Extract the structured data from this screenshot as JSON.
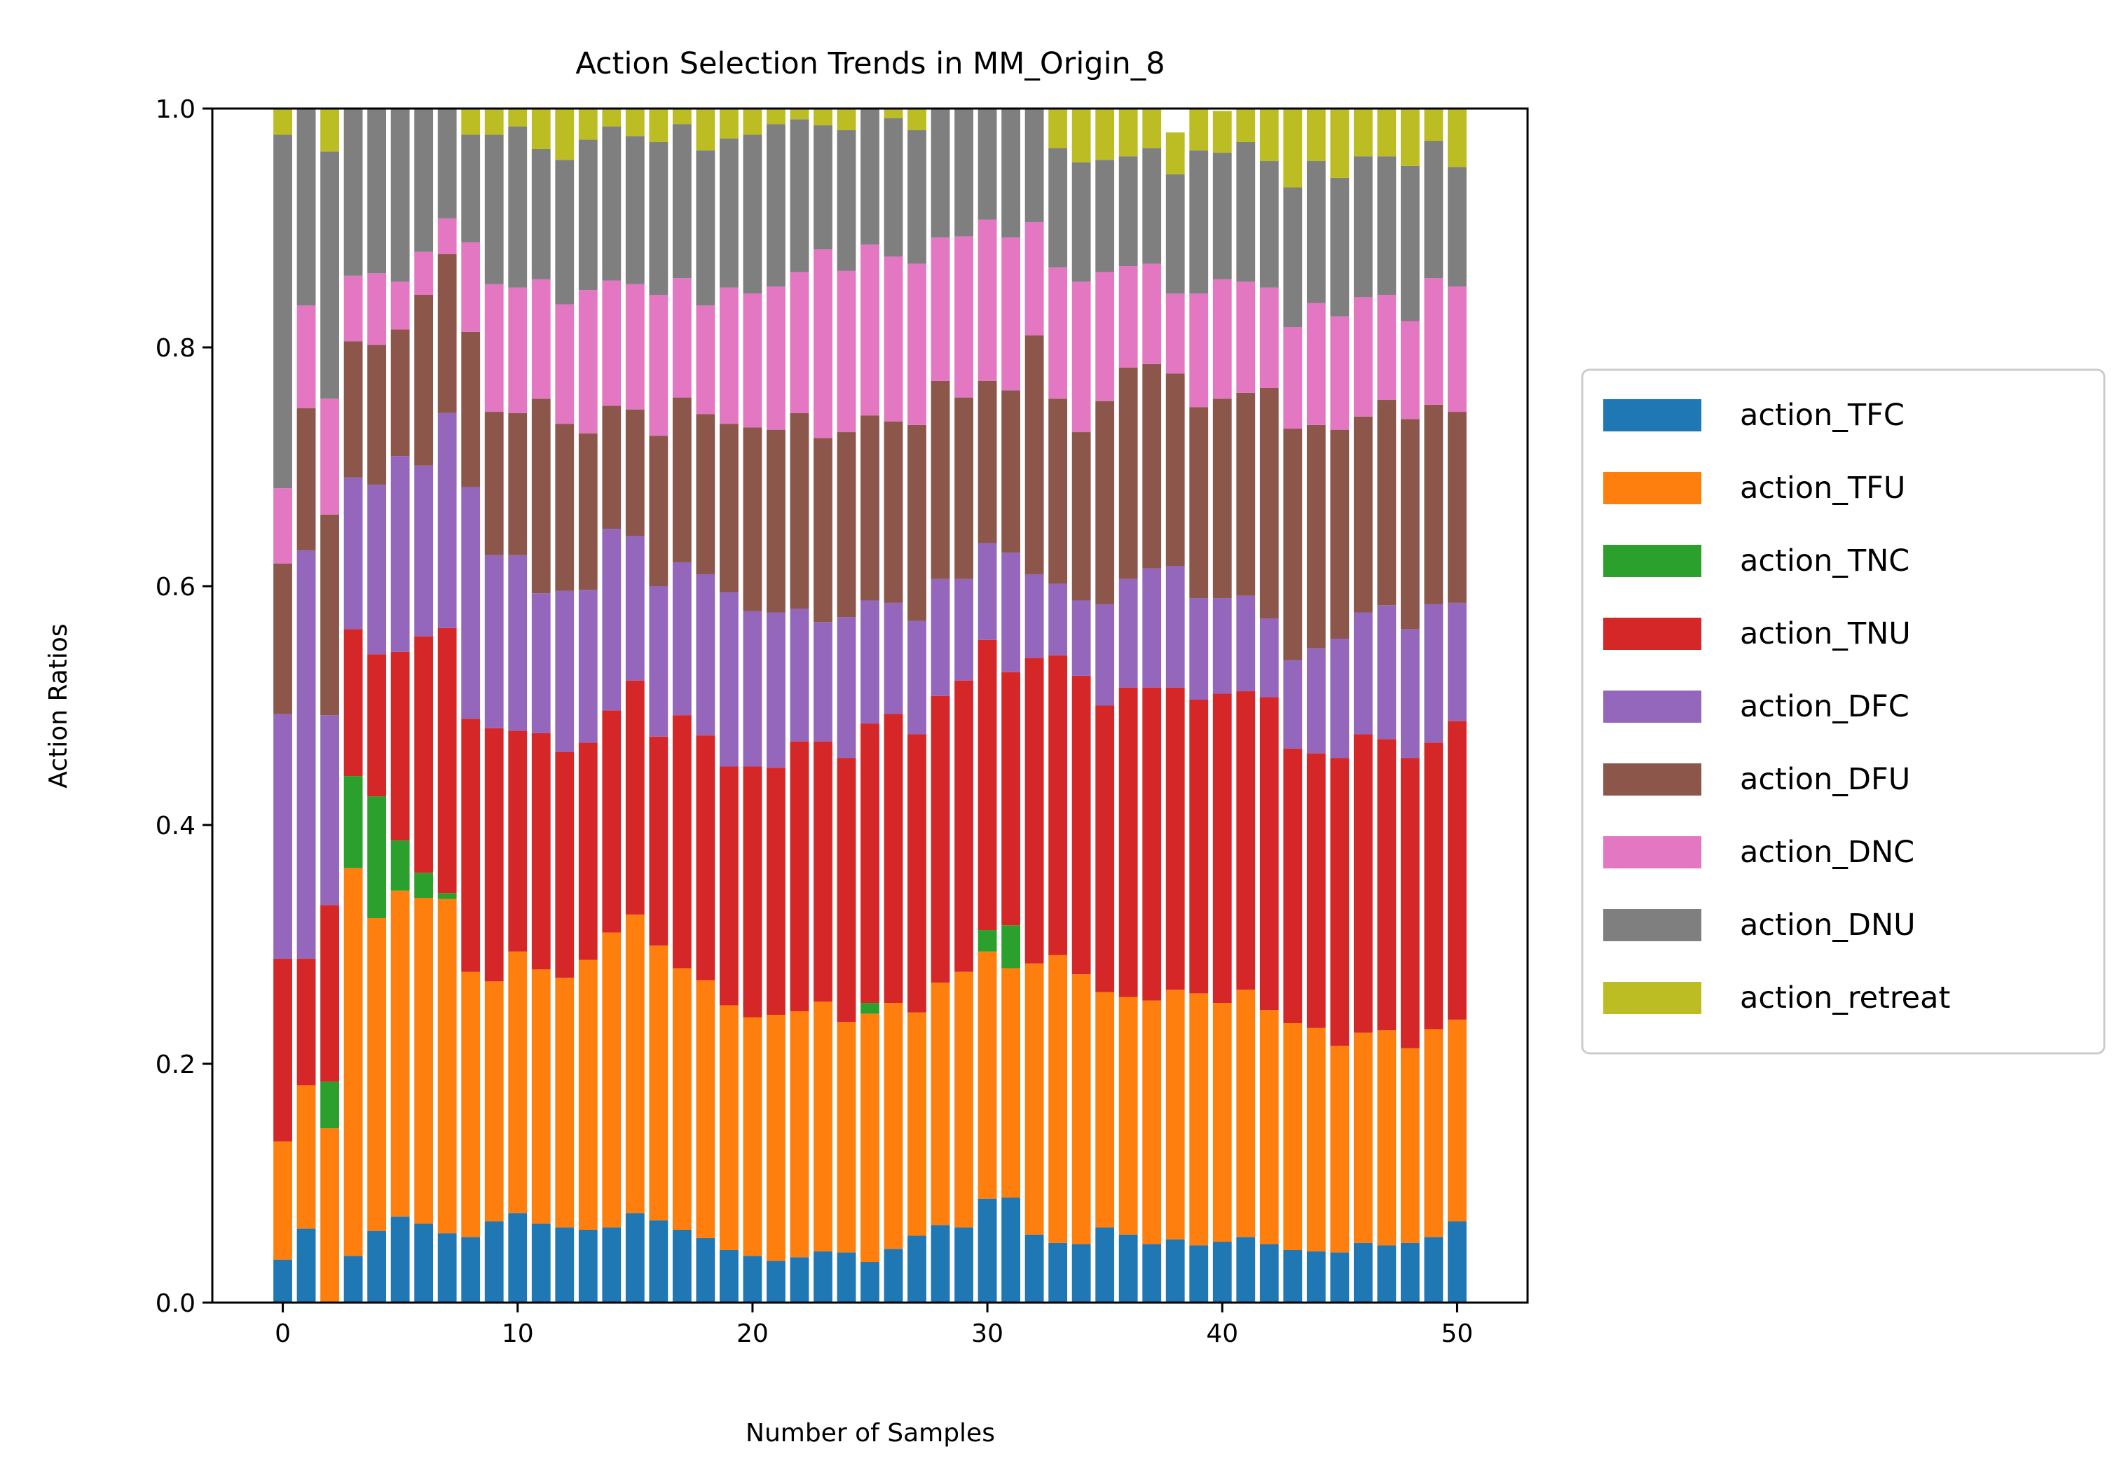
{
  "chart_data": {
    "type": "bar",
    "stacked": true,
    "title": "Action Selection Trends in MM_Origin_8",
    "xlabel": "Number of Samples",
    "ylabel": "Action Ratios",
    "xlim": [
      -3,
      53
    ],
    "ylim": [
      0,
      1
    ],
    "xticks": [
      0,
      10,
      20,
      30,
      40,
      50
    ],
    "yticks": [
      0.0,
      0.2,
      0.4,
      0.6,
      0.8,
      1.0
    ],
    "xtick_labels": [
      "0",
      "10",
      "20",
      "30",
      "40",
      "50"
    ],
    "ytick_labels": [
      "0.0",
      "0.2",
      "0.4",
      "0.6",
      "0.8",
      "1.0"
    ],
    "grid": false,
    "legend_position": "outside-right",
    "x": [
      0,
      1,
      2,
      3,
      4,
      5,
      6,
      7,
      8,
      9,
      10,
      11,
      12,
      13,
      14,
      15,
      16,
      17,
      18,
      19,
      20,
      21,
      22,
      23,
      24,
      25,
      26,
      27,
      28,
      29,
      30,
      31,
      32,
      33,
      34,
      35,
      36,
      37,
      38,
      39,
      40,
      41,
      42,
      43,
      44,
      45,
      46,
      47,
      48,
      49,
      50
    ],
    "series": [
      {
        "name": "action_TFC",
        "color": "#1f77b4",
        "values": [
          0.036,
          0.062,
          0.0,
          0.039,
          0.06,
          0.072,
          0.066,
          0.058,
          0.055,
          0.068,
          0.075,
          0.066,
          0.063,
          0.061,
          0.063,
          0.075,
          0.069,
          0.061,
          0.054,
          0.044,
          0.039,
          0.035,
          0.038,
          0.043,
          0.042,
          0.034,
          0.045,
          0.056,
          0.065,
          0.063,
          0.087,
          0.088,
          0.057,
          0.05,
          0.049,
          0.063,
          0.057,
          0.049,
          0.053,
          0.048,
          0.051,
          0.055,
          0.049,
          0.044,
          0.043,
          0.042,
          0.05,
          0.048,
          0.05,
          0.055,
          0.068
        ]
      },
      {
        "name": "action_TFU",
        "color": "#ff7f0e",
        "values": [
          0.099,
          0.12,
          0.146,
          0.325,
          0.262,
          0.273,
          0.273,
          0.28,
          0.222,
          0.201,
          0.219,
          0.213,
          0.209,
          0.226,
          0.247,
          0.25,
          0.23,
          0.219,
          0.216,
          0.205,
          0.2,
          0.206,
          0.206,
          0.209,
          0.193,
          0.208,
          0.206,
          0.187,
          0.203,
          0.214,
          0.207,
          0.192,
          0.227,
          0.241,
          0.226,
          0.197,
          0.199,
          0.204,
          0.209,
          0.211,
          0.2,
          0.207,
          0.196,
          0.19,
          0.187,
          0.173,
          0.176,
          0.18,
          0.163,
          0.174,
          0.169
        ]
      },
      {
        "name": "action_TNC",
        "color": "#2ca02c",
        "values": [
          0,
          0,
          0.039,
          0.077,
          0.102,
          0.042,
          0.021,
          0.005,
          0,
          0,
          0,
          0,
          0,
          0,
          0,
          0,
          0,
          0,
          0,
          0,
          0,
          0,
          0,
          0,
          0,
          0.009,
          0,
          0,
          0,
          0,
          0.018,
          0.036,
          0,
          0,
          0,
          0,
          0,
          0,
          0,
          0,
          0,
          0,
          0,
          0,
          0,
          0,
          0,
          0,
          0,
          0,
          0
        ]
      },
      {
        "name": "action_TNU",
        "color": "#d62728",
        "values": [
          0.153,
          0.106,
          0.148,
          0.123,
          0.119,
          0.158,
          0.198,
          0.222,
          0.212,
          0.212,
          0.185,
          0.198,
          0.189,
          0.182,
          0.186,
          0.196,
          0.175,
          0.212,
          0.205,
          0.2,
          0.21,
          0.207,
          0.226,
          0.218,
          0.221,
          0.234,
          0.242,
          0.233,
          0.24,
          0.244,
          0.243,
          0.212,
          0.256,
          0.251,
          0.25,
          0.24,
          0.259,
          0.262,
          0.253,
          0.246,
          0.259,
          0.25,
          0.262,
          0.23,
          0.23,
          0.241,
          0.25,
          0.244,
          0.243,
          0.24,
          0.25
        ]
      },
      {
        "name": "action_DFC",
        "color": "#9467bd",
        "values": [
          0.205,
          0.342,
          0.159,
          0.127,
          0.142,
          0.164,
          0.143,
          0.18,
          0.194,
          0.145,
          0.147,
          0.117,
          0.135,
          0.128,
          0.152,
          0.121,
          0.126,
          0.128,
          0.135,
          0.146,
          0.13,
          0.13,
          0.111,
          0.1,
          0.118,
          0.103,
          0.093,
          0.095,
          0.098,
          0.085,
          0.081,
          0.1,
          0.07,
          0.06,
          0.063,
          0.085,
          0.091,
          0.1,
          0.102,
          0.085,
          0.08,
          0.08,
          0.066,
          0.074,
          0.088,
          0.1,
          0.102,
          0.112,
          0.108,
          0.116,
          0.099
        ]
      },
      {
        "name": "action_DFU",
        "color": "#8c564b",
        "values": [
          0.126,
          0.119,
          0.168,
          0.114,
          0.117,
          0.106,
          0.143,
          0.133,
          0.13,
          0.12,
          0.119,
          0.163,
          0.14,
          0.131,
          0.103,
          0.106,
          0.126,
          0.138,
          0.134,
          0.141,
          0.154,
          0.153,
          0.164,
          0.154,
          0.155,
          0.155,
          0.152,
          0.164,
          0.166,
          0.152,
          0.136,
          0.136,
          0.2,
          0.155,
          0.141,
          0.17,
          0.177,
          0.171,
          0.161,
          0.16,
          0.167,
          0.17,
          0.193,
          0.194,
          0.187,
          0.175,
          0.164,
          0.172,
          0.176,
          0.167,
          0.16
        ]
      },
      {
        "name": "action_DNC",
        "color": "#e377c2",
        "values": [
          0.063,
          0.086,
          0.097,
          0.055,
          0.06,
          0.04,
          0.036,
          0.03,
          0.075,
          0.107,
          0.105,
          0.1,
          0.1,
          0.12,
          0.105,
          0.105,
          0.118,
          0.1,
          0.091,
          0.114,
          0.112,
          0.12,
          0.118,
          0.158,
          0.135,
          0.143,
          0.138,
          0.135,
          0.12,
          0.135,
          0.135,
          0.128,
          0.095,
          0.11,
          0.126,
          0.108,
          0.085,
          0.084,
          0.067,
          0.095,
          0.1,
          0.093,
          0.084,
          0.085,
          0.102,
          0.095,
          0.1,
          0.088,
          0.082,
          0.106,
          0.105
        ]
      },
      {
        "name": "action_DNU",
        "color": "#7f7f7f",
        "values": [
          0.296,
          0.165,
          0.207,
          0.14,
          0.138,
          0.145,
          0.12,
          0.092,
          0.09,
          0.125,
          0.135,
          0.109,
          0.121,
          0.126,
          0.129,
          0.124,
          0.128,
          0.129,
          0.13,
          0.125,
          0.133,
          0.136,
          0.128,
          0.104,
          0.118,
          0.114,
          0.116,
          0.112,
          0.118,
          0.107,
          0.1,
          0.108,
          0.095,
          0.1,
          0.1,
          0.094,
          0.092,
          0.097,
          0.1,
          0.12,
          0.106,
          0.117,
          0.106,
          0.117,
          0.119,
          0.116,
          0.118,
          0.116,
          0.13,
          0.115,
          0.1
        ]
      },
      {
        "name": "action_retreat",
        "color": "#bcbd22",
        "values": [
          0.022,
          0,
          0.036,
          0,
          0,
          0,
          0,
          0,
          0.022,
          0.022,
          0.015,
          0.034,
          0.043,
          0.026,
          0.015,
          0.023,
          0.028,
          0.033,
          0.035,
          0.025,
          0.027,
          0.013,
          0.009,
          0.014,
          0.018,
          0.04,
          0.008,
          0.018,
          0.0,
          0.0,
          0.0,
          0.0,
          0.0,
          0.033,
          0.045,
          0.043,
          0.04,
          0.033,
          0.035,
          0.035,
          0.035,
          0.028,
          0.044,
          0.066,
          0.044,
          0.058,
          0.04,
          0.04,
          0.051,
          0.053,
          0.049
        ]
      }
    ]
  }
}
